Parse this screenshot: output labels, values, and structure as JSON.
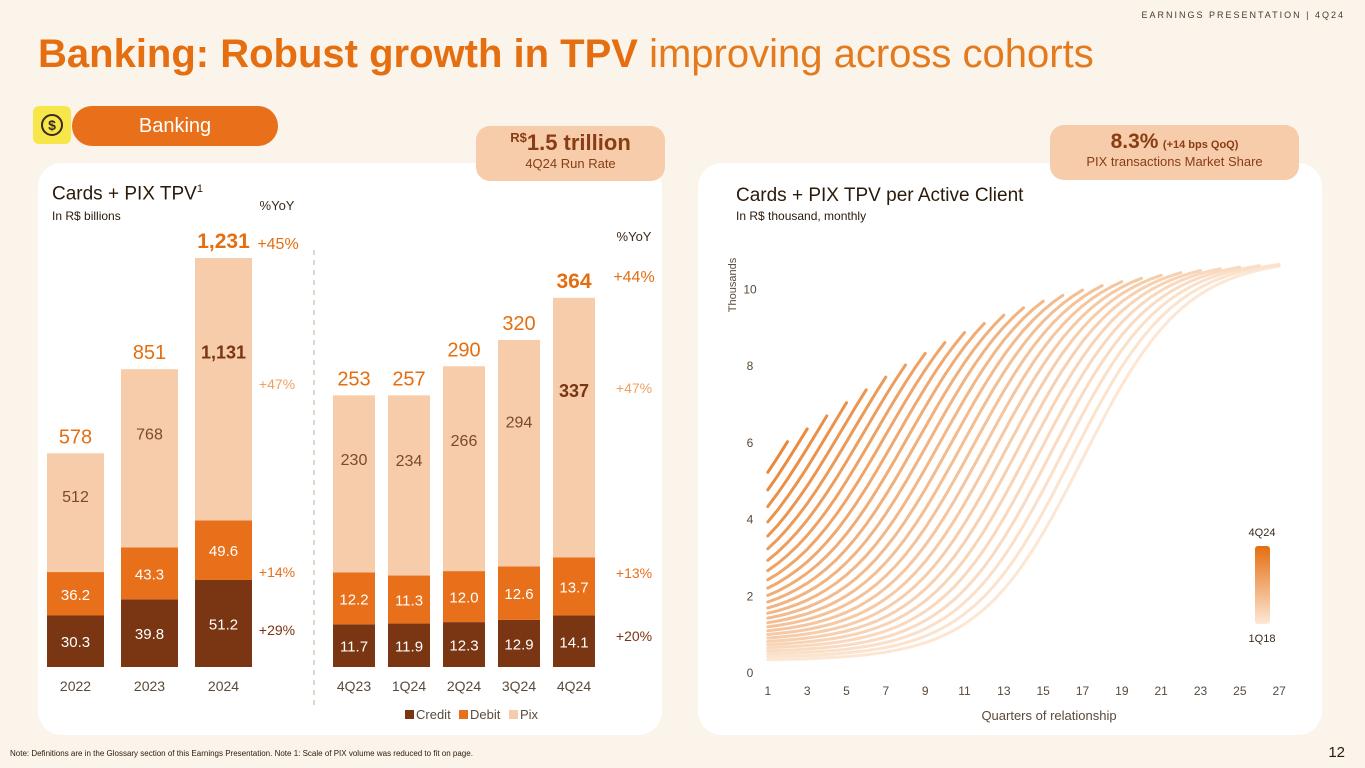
{
  "header": {
    "tag": "EARNINGS PRESENTATION | 4Q24"
  },
  "title": {
    "bold": "Banking: Robust growth in TPV",
    "light": " improving across cohorts"
  },
  "section": {
    "label": "Banking",
    "icon": "dollar-coin-icon"
  },
  "badges": {
    "left": {
      "currency": "R$",
      "value": "1.5 trillion",
      "caption": "4Q24 Run Rate"
    },
    "right": {
      "value": "8.3%",
      "delta": "(+14 bps QoQ)",
      "caption": "PIX transactions Market Share"
    }
  },
  "left_panel": {
    "title": "Cards + PIX TPV",
    "title_sup": "1",
    "subtitle": "In R$ billions",
    "yoy_header_annual": "%YoY",
    "yoy_header_quarterly": "%YoY"
  },
  "right_panel": {
    "title": "Cards + PIX TPV per Active Client",
    "subtitle": "In R$ thousand, monthly"
  },
  "footnote": "Note: Definitions are in the Glossary section of this Earnings Presentation. Note 1: Scale of PIX volume was reduced to fit on page.",
  "page_number": "12",
  "colors": {
    "credit": "#7a3512",
    "debit": "#e8701a",
    "pix": "#f6ccab",
    "accent": "#e46e10"
  },
  "chart_data": [
    {
      "type": "bar",
      "stacked": true,
      "title": "Cards + PIX TPV (annual)",
      "categories": [
        "2022",
        "2023",
        "2024"
      ],
      "series": [
        {
          "name": "Credit",
          "values": [
            30.3,
            39.8,
            51.2
          ],
          "labels": [
            "30.3",
            "39.8",
            "51.2"
          ]
        },
        {
          "name": "Debit",
          "values": [
            36.2,
            43.3,
            49.6
          ],
          "labels": [
            "36.2",
            "43.3",
            "49.6"
          ]
        },
        {
          "name": "Pix",
          "values": [
            512,
            768,
            1131
          ],
          "labels": [
            "512",
            "768",
            "1,131"
          ]
        }
      ],
      "totals": [
        "578",
        "851",
        "1,231"
      ],
      "yoy": {
        "total": "+45%",
        "pix": "+47%",
        "debit": "+14%",
        "credit": "+29%"
      }
    },
    {
      "type": "bar",
      "stacked": true,
      "title": "Cards + PIX TPV (quarterly)",
      "categories": [
        "4Q23",
        "1Q24",
        "2Q24",
        "3Q24",
        "4Q24"
      ],
      "series": [
        {
          "name": "Credit",
          "values": [
            11.7,
            11.9,
            12.3,
            12.9,
            14.1
          ],
          "labels": [
            "11.7",
            "11.9",
            "12.3",
            "12.9",
            "14.1"
          ]
        },
        {
          "name": "Debit",
          "values": [
            12.2,
            11.3,
            12.0,
            12.6,
            13.7
          ],
          "labels": [
            "12.2",
            "11.3",
            "12.0",
            "12.6",
            "13.7"
          ]
        },
        {
          "name": "Pix",
          "values": [
            230,
            234,
            266,
            294,
            337
          ],
          "labels": [
            "230",
            "234",
            "266",
            "294",
            "337"
          ]
        }
      ],
      "totals": [
        "253",
        "257",
        "290",
        "320",
        "364"
      ],
      "yoy": {
        "total": "+44%",
        "pix": "+47%",
        "debit": "+13%",
        "credit": "+20%"
      },
      "legend": [
        "Credit",
        "Debit",
        "Pix"
      ]
    },
    {
      "type": "line",
      "title": "Cards + PIX TPV per Active Client",
      "xlabel": "Quarters of relationship",
      "ylabel": "Thousands",
      "xlim": [
        0.5,
        27.5
      ],
      "ylim": [
        0,
        11
      ],
      "xticks": [
        1,
        3,
        5,
        7,
        9,
        11,
        13,
        15,
        17,
        19,
        21,
        23,
        25,
        27
      ],
      "yticks": [
        0,
        2,
        4,
        6,
        8,
        10
      ],
      "cohort_legend": {
        "newest": "4Q24",
        "oldest": "1Q18"
      },
      "series_note": "Cohorts 1Q18 (lightest) to 4Q24 (darkest); each curve starts at quarter 1"
    }
  ]
}
